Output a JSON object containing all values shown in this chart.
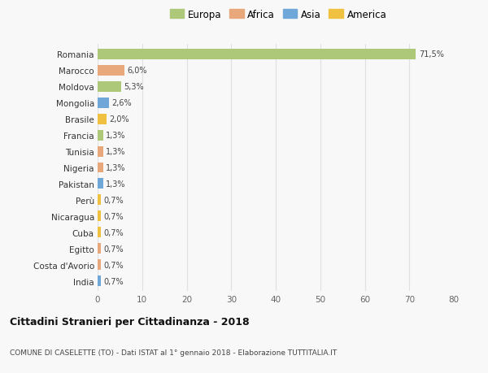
{
  "categories": [
    "Romania",
    "Marocco",
    "Moldova",
    "Mongolia",
    "Brasile",
    "Francia",
    "Tunisia",
    "Nigeria",
    "Pakistan",
    "Perù",
    "Nicaragua",
    "Cuba",
    "Egitto",
    "Costa d'Avorio",
    "India"
  ],
  "values": [
    71.5,
    6.0,
    5.3,
    2.6,
    2.0,
    1.3,
    1.3,
    1.3,
    1.3,
    0.7,
    0.7,
    0.7,
    0.7,
    0.7,
    0.7
  ],
  "labels": [
    "71,5%",
    "6,0%",
    "5,3%",
    "2,6%",
    "2,0%",
    "1,3%",
    "1,3%",
    "1,3%",
    "1,3%",
    "0,7%",
    "0,7%",
    "0,7%",
    "0,7%",
    "0,7%",
    "0,7%"
  ],
  "colors": [
    "#adc878",
    "#e8a87c",
    "#adc878",
    "#6fa8d8",
    "#f0c040",
    "#adc878",
    "#e8a87c",
    "#e8a87c",
    "#6fa8d8",
    "#f0c040",
    "#f0c040",
    "#f0c040",
    "#e8a87c",
    "#e8a87c",
    "#6fa8d8"
  ],
  "legend_labels": [
    "Europa",
    "Africa",
    "Asia",
    "America"
  ],
  "legend_colors": [
    "#adc878",
    "#e8a87c",
    "#6fa8d8",
    "#f0c040"
  ],
  "title": "Cittadini Stranieri per Cittadinanza - 2018",
  "subtitle": "COMUNE DI CASELETTE (TO) - Dati ISTAT al 1° gennaio 2018 - Elaborazione TUTTITALIA.IT",
  "xlim": [
    0,
    80
  ],
  "xticks": [
    0,
    10,
    20,
    30,
    40,
    50,
    60,
    70,
    80
  ],
  "background_color": "#f8f8f8",
  "grid_color": "#e0e0e0",
  "bar_height": 0.65
}
